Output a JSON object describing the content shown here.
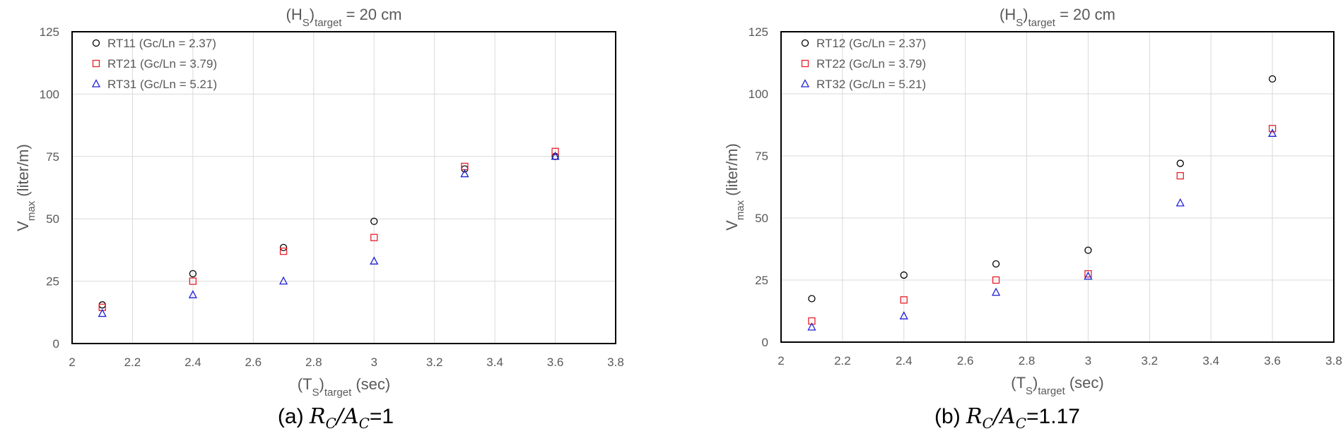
{
  "chart_data": [
    {
      "type": "scatter",
      "title": {
        "main": "(H",
        "sub": "S",
        "tail": ")",
        "sub2": "target",
        "rest": " = 20 cm"
      },
      "xlabel": {
        "main": "(T",
        "sub": "S",
        "tail": ")",
        "sub2": "target",
        "rest": " (sec)"
      },
      "ylabel": {
        "main": "V",
        "sub": "max",
        "rest": " (liter/m)"
      },
      "xlim": [
        2,
        3.8
      ],
      "ylim": [
        0,
        125
      ],
      "xticks": [
        "2",
        "2.2",
        "2.4",
        "2.6",
        "2.8",
        "3",
        "3.2",
        "3.4",
        "3.6",
        "3.8"
      ],
      "yticks": [
        "0",
        "25",
        "50",
        "75",
        "100",
        "125"
      ],
      "grid": true,
      "legend_position": "top-left",
      "caption": {
        "prefix": "(a) ",
        "math": "R",
        "sub1": "C",
        "slash": "/",
        "math2": "A",
        "sub2": "C",
        "value": "=1"
      },
      "series": [
        {
          "name": "RT11 (Gc/Ln = 2.37)",
          "marker": "circle",
          "color": "#000000",
          "x": [
            2.1,
            2.4,
            2.7,
            3.0,
            3.3,
            3.6
          ],
          "y": [
            15.5,
            28,
            38.5,
            49,
            70,
            75
          ]
        },
        {
          "name": "RT21 (Gc/Ln = 3.79)",
          "marker": "square",
          "color": "#e8202a",
          "x": [
            2.1,
            2.4,
            2.7,
            3.0,
            3.3,
            3.6
          ],
          "y": [
            14.5,
            25,
            37,
            42.5,
            71,
            77
          ]
        },
        {
          "name": "RT31 (Gc/Ln = 5.21)",
          "marker": "triangle",
          "color": "#1f1fd6",
          "x": [
            2.1,
            2.4,
            2.7,
            3.0,
            3.3,
            3.6
          ],
          "y": [
            12,
            19.5,
            25,
            33,
            68,
            75
          ]
        }
      ]
    },
    {
      "type": "scatter",
      "title": {
        "main": "(H",
        "sub": "S",
        "tail": ")",
        "sub2": "target",
        "rest": " = 20 cm"
      },
      "xlabel": {
        "main": "(T",
        "sub": "S",
        "tail": ")",
        "sub2": "target",
        "rest": " (sec)"
      },
      "ylabel": {
        "main": "V",
        "sub": "max",
        "rest": " (liter/m)"
      },
      "xlim": [
        2,
        3.8
      ],
      "ylim": [
        0,
        125
      ],
      "xticks": [
        "2",
        "2.2",
        "2.4",
        "2.6",
        "2.8",
        "3",
        "3.2",
        "3.4",
        "3.6",
        "3.8"
      ],
      "yticks": [
        "0",
        "25",
        "50",
        "75",
        "100",
        "125"
      ],
      "grid": true,
      "legend_position": "top-left",
      "caption": {
        "prefix": "(b) ",
        "math": "R",
        "sub1": "C",
        "slash": "/",
        "math2": "A",
        "sub2": "C",
        "value": "=1.17"
      },
      "series": [
        {
          "name": "RT12 (Gc/Ln = 2.37)",
          "marker": "circle",
          "color": "#000000",
          "x": [
            2.1,
            2.4,
            2.7,
            3.0,
            3.3,
            3.6
          ],
          "y": [
            17.5,
            27,
            31.5,
            37,
            72,
            106
          ]
        },
        {
          "name": "RT22 (Gc/Ln = 3.79)",
          "marker": "square",
          "color": "#e8202a",
          "x": [
            2.1,
            2.4,
            2.7,
            3.0,
            3.3,
            3.6
          ],
          "y": [
            8.5,
            17,
            25,
            27.5,
            67,
            86
          ]
        },
        {
          "name": "RT32 (Gc/Ln = 5.21)",
          "marker": "triangle",
          "color": "#1f1fd6",
          "x": [
            2.1,
            2.4,
            2.7,
            3.0,
            3.3,
            3.6
          ],
          "y": [
            6,
            10.5,
            20,
            26.5,
            56,
            84
          ]
        }
      ]
    }
  ]
}
